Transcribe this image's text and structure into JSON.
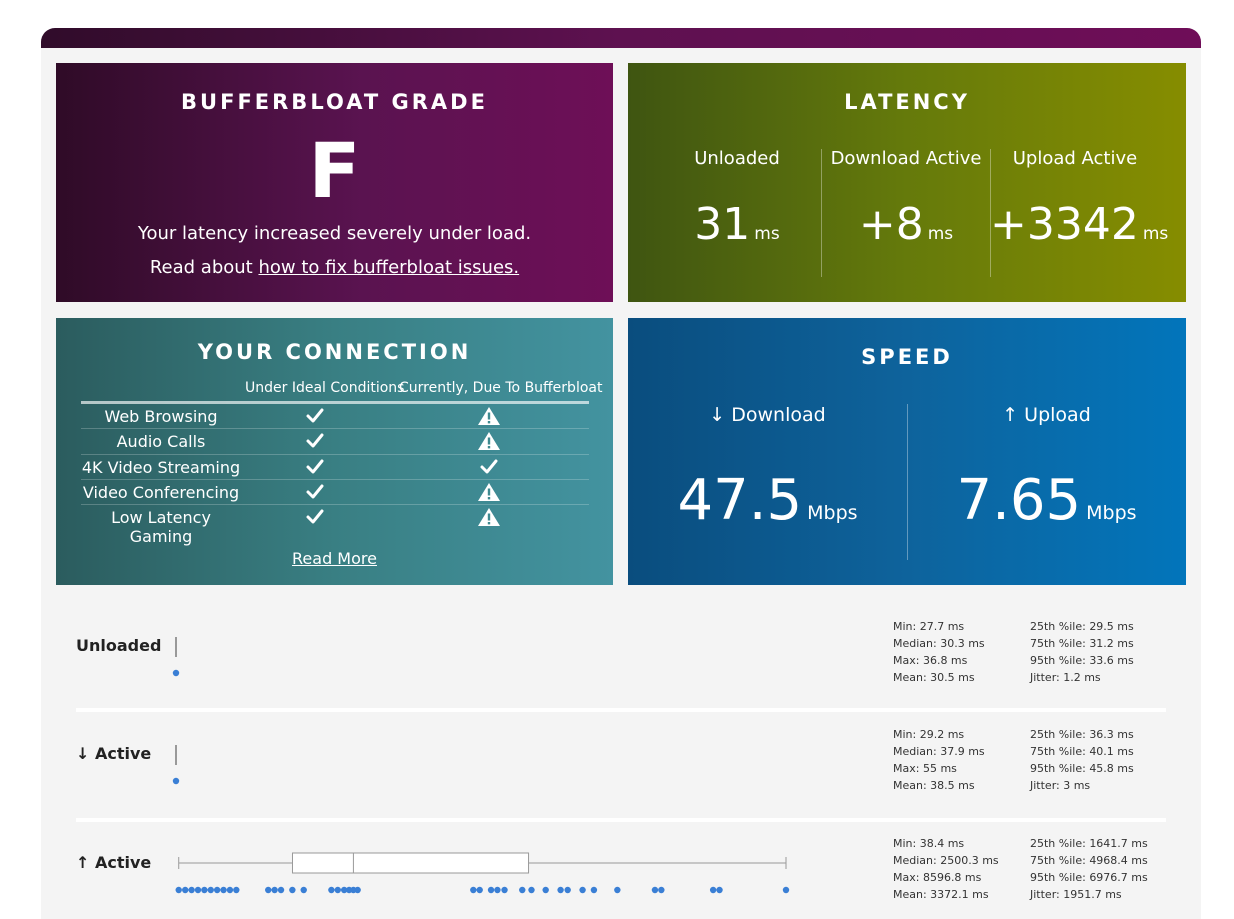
{
  "grade": {
    "title": "BUFFERBLOAT GRADE",
    "letter": "F",
    "message": "Your latency increased severely under load.",
    "read_prefix": "Read about ",
    "read_link": "how to fix bufferbloat issues."
  },
  "latency": {
    "title": "LATENCY",
    "cols": [
      {
        "label": "Unloaded",
        "value": "31",
        "unit": "ms"
      },
      {
        "label": "Download Active",
        "value": "+8",
        "unit": "ms"
      },
      {
        "label": "Upload Active",
        "value": "+3342",
        "unit": "ms"
      }
    ]
  },
  "connection": {
    "title": "YOUR CONNECTION",
    "col_ideal": "Under Ideal Conditions",
    "col_current": "Currently, Due To Bufferbloat",
    "rows": [
      {
        "service": "Web Browsing",
        "ideal": "check",
        "current": "warning"
      },
      {
        "service": "Audio Calls",
        "ideal": "check",
        "current": "warning"
      },
      {
        "service": "4K Video Streaming",
        "ideal": "check",
        "current": "check"
      },
      {
        "service": "Video Conferencing",
        "ideal": "check",
        "current": "warning"
      },
      {
        "service": "Low Latency Gaming",
        "ideal": "check",
        "current": "warning"
      }
    ],
    "read_more": "Read More"
  },
  "speed": {
    "title": "SPEED",
    "download": {
      "label": "↓ Download",
      "value": "47.5",
      "unit": "Mbps"
    },
    "upload": {
      "label": "↑ Upload",
      "value": "7.65",
      "unit": "Mbps"
    }
  },
  "latency_rows": [
    {
      "label": "Unloaded",
      "stats_left": [
        "Min: 27.7 ms",
        "Median: 30.3 ms",
        "Max: 36.8 ms",
        "Mean: 30.5 ms"
      ],
      "stats_right": [
        "25th %ile: 29.5 ms",
        "75th %ile: 31.2 ms",
        "95th %ile: 33.6 ms",
        "Jitter: 1.2 ms"
      ],
      "box": {
        "min": 27.7,
        "q1": 29.5,
        "median": 30.3,
        "q3": 31.2,
        "max": 36.8
      },
      "points": [
        30.3
      ]
    },
    {
      "label": "↓ Active",
      "stats_left": [
        "Min: 29.2 ms",
        "Median: 37.9 ms",
        "Max: 55 ms",
        "Mean: 38.5 ms"
      ],
      "stats_right": [
        "25th %ile: 36.3 ms",
        "75th %ile: 40.1 ms",
        "95th %ile: 45.8 ms",
        "Jitter: 3 ms"
      ],
      "box": {
        "min": 29.2,
        "q1": 36.3,
        "median": 37.9,
        "q3": 40.1,
        "max": 55
      },
      "points": [
        37.9
      ]
    },
    {
      "label": "↑ Active",
      "stats_left": [
        "Min: 38.4 ms",
        "Median: 2500.3 ms",
        "Max: 8596.8 ms",
        "Mean: 3372.1 ms"
      ],
      "stats_right": [
        "25th %ile: 1641.7 ms",
        "75th %ile: 4968.4 ms",
        "95th %ile: 6976.7 ms",
        "Jitter: 1951.7 ms"
      ],
      "box": {
        "min": 38.4,
        "q1": 1641.7,
        "median": 2500.3,
        "q3": 4968.4,
        "max": 8596.8
      },
      "points": [
        38.4,
        130,
        220,
        310,
        400,
        490,
        580,
        670,
        760,
        850,
        1300,
        1390,
        1480,
        1640,
        1800,
        2190,
        2280,
        2370,
        2440,
        2500,
        2560,
        4190,
        4280,
        4440,
        4530,
        4630,
        4880,
        5010,
        5210,
        5420,
        5520,
        5730,
        5890,
        6220,
        6750,
        6840,
        7570,
        7660,
        8596.8
      ]
    }
  ],
  "chart_scale": {
    "max_ms": 8596.8
  }
}
